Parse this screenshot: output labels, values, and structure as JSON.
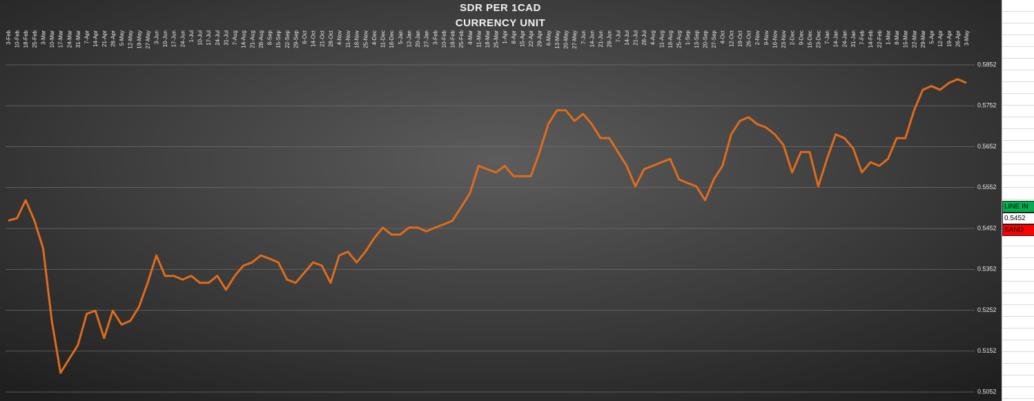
{
  "chart_data": {
    "type": "line",
    "title": "SDR PER 1CAD",
    "subtitle": "CURRENCY UNIT",
    "categories": [
      "3-Feb",
      "10-Feb",
      "18-Feb",
      "25-Feb",
      "3-Mar",
      "10-Mar",
      "17-Mar",
      "24-Mar",
      "31-Mar",
      "7-Apr",
      "14-Apr",
      "21-Apr",
      "28-Apr",
      "5-May",
      "12-May",
      "19-May",
      "27-May",
      "3-Jun",
      "10-Jun",
      "17-Jun",
      "24-Jun",
      "1-Jul",
      "10-Jul",
      "17-Jul",
      "24-Jul",
      "31-Jul",
      "7-Aug",
      "14-Aug",
      "21-Aug",
      "28-Aug",
      "8-Sep",
      "15-Sep",
      "22-Sep",
      "29-Sep",
      "6-Oct",
      "14-Oct",
      "21-Oct",
      "28-Oct",
      "4-Nov",
      "11-Nov",
      "18-Nov",
      "25-Nov",
      "4-Dec",
      "11-Dec",
      "18-Dec",
      "5-Jan",
      "12-Jan",
      "20-Jan",
      "27-Jan",
      "3-Feb",
      "10-Feb",
      "18-Feb",
      "25-Feb",
      "4-Mar",
      "11-Mar",
      "18-Mar",
      "25-Mar",
      "1-Apr",
      "8-Apr",
      "15-Apr",
      "22-Apr",
      "29-Apr",
      "6-May",
      "13-May",
      "20-May",
      "27-May",
      "7-Jun",
      "14-Jun",
      "21-Jun",
      "28-Jun",
      "7-Jul",
      "14-Jul",
      "21-Jul",
      "28-Jul",
      "4-Aug",
      "11-Aug",
      "18-Aug",
      "25-Aug",
      "1-Sep",
      "13-Sep",
      "20-Sep",
      "27-Sep",
      "4-Oct",
      "12-Oct",
      "19-Oct",
      "26-Oct",
      "2-Nov",
      "9-Nov",
      "16-Nov",
      "23-Nov",
      "2-Dec",
      "9-Dec",
      "16-Dec",
      "23-Dec",
      "7-Jan",
      "14-Jan",
      "24-Jan",
      "31-Jan",
      "7-Feb",
      "14-Feb",
      "22-Feb",
      "1-Mar",
      "8-Mar",
      "15-Mar",
      "22-Mar",
      "29-Mar",
      "5-Apr",
      "12-Apr",
      "19-Apr",
      "26-Apr",
      "3-May"
    ],
    "values": [
      0.5471,
      0.5477,
      0.5521,
      0.5471,
      0.5403,
      0.5226,
      0.5099,
      0.5133,
      0.5167,
      0.5243,
      0.5251,
      0.5184,
      0.5251,
      0.5217,
      0.5226,
      0.526,
      0.5319,
      0.5386,
      0.5336,
      0.5336,
      0.5327,
      0.5336,
      0.5319,
      0.5319,
      0.5336,
      0.5302,
      0.5336,
      0.5361,
      0.5369,
      0.5386,
      0.5378,
      0.5369,
      0.5327,
      0.5319,
      0.5344,
      0.5369,
      0.5361,
      0.5319,
      0.5386,
      0.5395,
      0.5369,
      0.5395,
      0.5428,
      0.5454,
      0.5437,
      0.5437,
      0.5454,
      0.5454,
      0.5445,
      0.5454,
      0.5462,
      0.5471,
      0.5504,
      0.5538,
      0.5605,
      0.5597,
      0.5589,
      0.5605,
      0.558,
      0.558,
      0.558,
      0.5639,
      0.5707,
      0.5741,
      0.5741,
      0.5715,
      0.5732,
      0.5707,
      0.5673,
      0.5673,
      0.5639,
      0.5605,
      0.5555,
      0.5597,
      0.5605,
      0.5614,
      0.5622,
      0.5572,
      0.5563,
      0.5555,
      0.5521,
      0.5572,
      0.5605,
      0.5682,
      0.5715,
      0.5724,
      0.5707,
      0.5699,
      0.5682,
      0.5656,
      0.5589,
      0.5639,
      0.5639,
      0.5555,
      0.5622,
      0.5682,
      0.5673,
      0.5648,
      0.5589,
      0.5614,
      0.5605,
      0.5622,
      0.5673,
      0.5673,
      0.5741,
      0.5791,
      0.58,
      0.5791,
      0.5808,
      0.5817,
      0.5808
    ],
    "color": "#e06c1c",
    "ylim": [
      0.5052,
      0.5852
    ],
    "yticks": [
      0.5052,
      0.5152,
      0.5252,
      0.5352,
      0.5452,
      0.5552,
      0.5652,
      0.5752,
      0.5852
    ],
    "grid": true
  },
  "side_panel": {
    "cells": [
      {
        "text": "LINE IN",
        "color": "#00b050"
      },
      {
        "text": "0.5452",
        "color": "#ffffff"
      },
      {
        "text": "SAND",
        "color": "#ff0000"
      }
    ]
  }
}
